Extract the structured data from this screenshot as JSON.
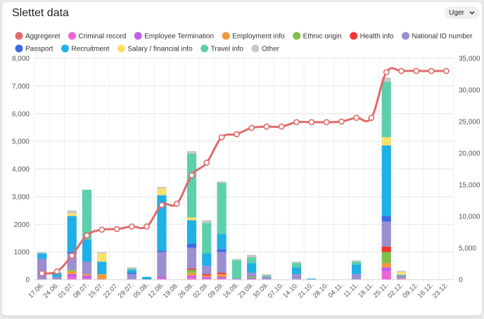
{
  "header": {
    "title": "Slettet data",
    "range_label": "Uger",
    "range_icon": "chevron-down-icon"
  },
  "colors": {
    "aggregeret": "#e06a6a",
    "criminal_record": "#ef63d6",
    "employee_termination": "#c25ee8",
    "employment_info": "#f39a3a",
    "ethnic_origin": "#7ec04a",
    "health_info": "#ef3535",
    "national_id": "#9b8fcf",
    "passport": "#3d6be6",
    "recruitment": "#1fb0e6",
    "salary": "#fbe06a",
    "travel": "#5ccfab",
    "other": "#c8c8c8"
  },
  "chart_data": {
    "type": "bar",
    "stacked": true,
    "categories": [
      "17.06.",
      "24.06.",
      "01.07.",
      "08.07.",
      "15.07.",
      "22.07.",
      "29.07.",
      "05.08.",
      "12.08.",
      "19.08.",
      "26.08.",
      "02.09.",
      "09.09.",
      "16.09.",
      "23.09.",
      "30.09.",
      "07.10.",
      "14.10.",
      "21.10.",
      "28.10.",
      "04.11.",
      "11.11.",
      "18.11.",
      "25.11.",
      "02.12.",
      "09.12.",
      "16.12.",
      "23.12."
    ],
    "ylim": [
      0,
      8000
    ],
    "yticks": [
      "0",
      "1000",
      "2000",
      "3,000",
      "4,000",
      "5,000",
      "6,000",
      "7,000",
      "8,000"
    ],
    "y2lim": [
      0,
      35000
    ],
    "y2ticks": [
      "0",
      "5,000",
      "10,000",
      "15,000",
      "20,000",
      "25,000",
      "30,000",
      "35,000"
    ],
    "legend_position": "top",
    "grid": true,
    "series": [
      {
        "key": "criminal_record",
        "name": "Criminal record",
        "values": [
          0,
          0,
          100,
          50,
          0,
          0,
          0,
          0,
          50,
          0,
          100,
          50,
          50,
          0,
          0,
          0,
          0,
          0,
          0,
          0,
          0,
          0,
          0,
          300,
          20,
          0,
          0,
          0
        ]
      },
      {
        "key": "employee_termination",
        "name": "Employee Termination",
        "values": [
          0,
          0,
          100,
          100,
          0,
          0,
          0,
          0,
          50,
          0,
          50,
          50,
          50,
          0,
          50,
          0,
          0,
          0,
          0,
          0,
          0,
          0,
          0,
          150,
          20,
          0,
          0,
          0
        ]
      },
      {
        "key": "employment_info",
        "name": "Employment info",
        "values": [
          0,
          0,
          100,
          50,
          200,
          0,
          0,
          0,
          0,
          0,
          100,
          50,
          100,
          0,
          0,
          0,
          0,
          0,
          0,
          0,
          0,
          0,
          0,
          150,
          20,
          0,
          0,
          0
        ]
      },
      {
        "key": "ethnic_origin",
        "name": "Ethnic origin",
        "values": [
          0,
          0,
          50,
          0,
          0,
          0,
          0,
          0,
          0,
          0,
          100,
          0,
          0,
          0,
          50,
          0,
          0,
          0,
          0,
          0,
          0,
          0,
          0,
          400,
          0,
          0,
          0,
          0
        ]
      },
      {
        "key": "health_info",
        "name": "Health info",
        "values": [
          0,
          0,
          0,
          0,
          0,
          0,
          0,
          0,
          0,
          0,
          50,
          50,
          50,
          0,
          0,
          0,
          0,
          0,
          0,
          0,
          0,
          0,
          0,
          200,
          0,
          0,
          0,
          0
        ]
      },
      {
        "key": "national_id",
        "name": "National ID number",
        "values": [
          750,
          100,
          600,
          450,
          0,
          0,
          200,
          0,
          900,
          0,
          750,
          300,
          750,
          50,
          150,
          100,
          0,
          200,
          0,
          0,
          0,
          200,
          0,
          900,
          80,
          0,
          0,
          0
        ]
      },
      {
        "key": "passport",
        "name": "Passport",
        "values": [
          0,
          0,
          50,
          0,
          0,
          0,
          50,
          0,
          50,
          0,
          150,
          0,
          100,
          0,
          0,
          0,
          0,
          0,
          0,
          0,
          0,
          0,
          0,
          200,
          0,
          0,
          0,
          0
        ]
      },
      {
        "key": "recruitment",
        "name": "Recruitment",
        "values": [
          200,
          150,
          1300,
          800,
          450,
          0,
          100,
          100,
          2000,
          0,
          850,
          450,
          550,
          0,
          350,
          0,
          0,
          250,
          40,
          0,
          0,
          350,
          0,
          2550,
          30,
          0,
          0,
          0
        ]
      },
      {
        "key": "salary",
        "name": "Salary / financial info",
        "values": [
          0,
          0,
          100,
          0,
          300,
          0,
          0,
          0,
          250,
          0,
          100,
          0,
          0,
          0,
          0,
          0,
          0,
          0,
          0,
          0,
          0,
          0,
          0,
          300,
          100,
          0,
          0,
          0
        ]
      },
      {
        "key": "travel",
        "name": "Travel info",
        "values": [
          0,
          0,
          0,
          1800,
          0,
          0,
          50,
          0,
          0,
          0,
          2300,
          1100,
          1850,
          650,
          200,
          50,
          0,
          150,
          0,
          0,
          0,
          100,
          0,
          2000,
          0,
          0,
          0,
          0
        ]
      },
      {
        "key": "other",
        "name": "Other",
        "values": [
          50,
          0,
          100,
          0,
          50,
          0,
          50,
          0,
          50,
          0,
          100,
          100,
          50,
          50,
          100,
          50,
          0,
          50,
          0,
          0,
          0,
          50,
          0,
          150,
          50,
          0,
          0,
          0
        ]
      }
    ],
    "line": {
      "key": "aggregeret",
      "name": "Aggregeret",
      "axis": "right",
      "values": [
        1000,
        1300,
        3800,
        7000,
        7900,
        8000,
        8400,
        8400,
        11800,
        12000,
        16500,
        18500,
        22500,
        23000,
        24000,
        24200,
        24200,
        24900,
        24900,
        24900,
        25000,
        25600,
        25600,
        32800,
        33000,
        33000,
        33000,
        33000
      ]
    }
  }
}
